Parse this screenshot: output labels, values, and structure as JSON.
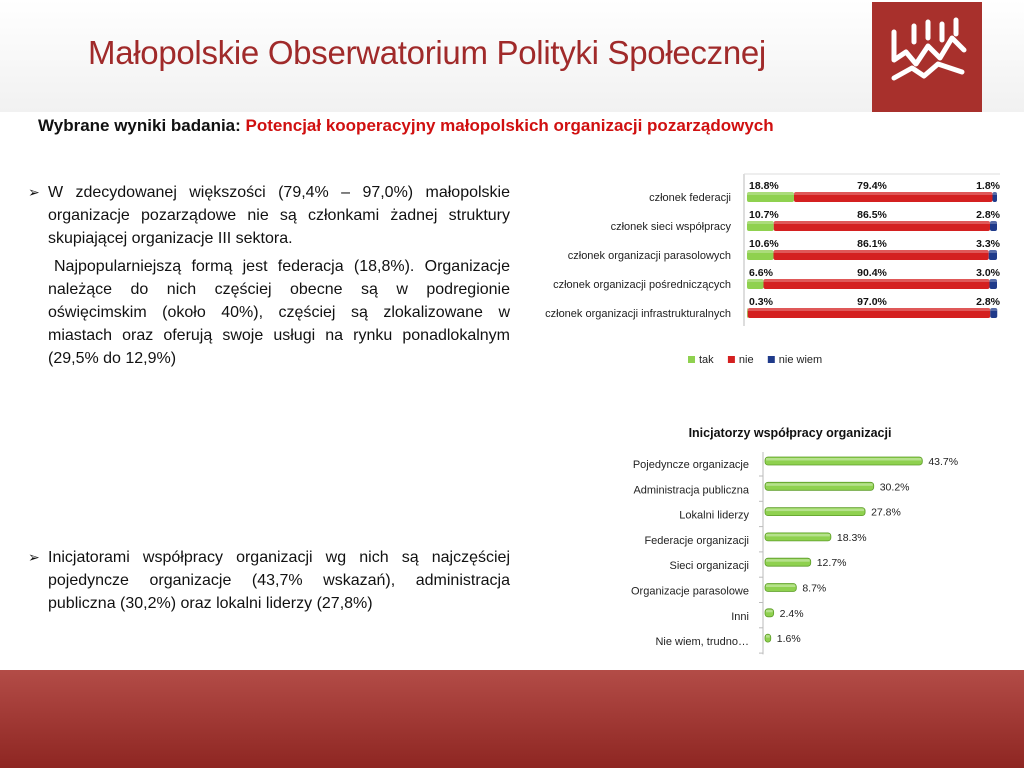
{
  "header": {
    "title": "Małopolskie Obserwatorium Polityki Społecznej"
  },
  "subtitle": {
    "label": "Wybrane wyniki badania:",
    "value": "Potencjał kooperacyjny małopolskich organizacji pozarządowych"
  },
  "text": {
    "para1": "W zdecydowanej większości (79,4% – 97,0%) małopolskie organizacje pozarządowe nie są członkami żadnej struktury skupiającej organizacje III sektora.",
    "para2": "Najpopularniejszą formą jest federacja (18,8%). Organizacje należące do nich częściej obecne są w podregionie oświęcimskim (około 40%), częściej są zlokalizowane w miastach oraz oferują swoje usługi na rynku ponadlokalnym (29,5% do 12,9%)",
    "para3": "Inicjatorami współpracy organizacji wg nich są najczęściej pojedyncze organizacje (43,7% wskazań), administracja publiczna (30,2%) oraz lokalni liderzy (27,8%)",
    "bullet_glyph": "➢"
  },
  "chart_data": [
    {
      "type": "bar",
      "orientation": "horizontal",
      "stacked": true,
      "title": "",
      "categories": [
        "członek federacji",
        "członek sieci współpracy",
        "członek organizacji parasolowych",
        "członek organizacji pośredniczących",
        "członek organizacji infrastrukturalnych"
      ],
      "series": [
        {
          "name": "tak",
          "values": [
            18.8,
            10.7,
            10.6,
            6.6,
            0.3
          ],
          "labels": [
            "18.8%",
            "10.7%",
            "10.6%",
            "6.6%",
            "0.3%"
          ],
          "color": "#8fd14f"
        },
        {
          "name": "nie",
          "values": [
            79.4,
            86.5,
            86.1,
            90.4,
            97.0
          ],
          "labels": [
            "79.4%",
            "86.5%",
            "86.1%",
            "90.4%",
            "97.0%"
          ],
          "color": "#d42020"
        },
        {
          "name": "nie wiem",
          "values": [
            1.8,
            2.8,
            3.3,
            3.0,
            2.8
          ],
          "labels": [
            "1.8%",
            "2.8%",
            "3.3%",
            "3.0%",
            "2.8%"
          ],
          "color": "#1f3a8a"
        }
      ],
      "xlim": [
        0,
        100
      ],
      "legend": "bottom"
    },
    {
      "type": "bar",
      "orientation": "horizontal",
      "title": "Inicjatorzy współpracy organizacji",
      "categories": [
        "Pojedyncze organizacje",
        "Administracja publiczna",
        "Lokalni liderzy",
        "Federacje organizacji",
        "Sieci organizacji",
        "Organizacje parasolowe",
        "Inni",
        "Nie wiem, trudno…"
      ],
      "values": [
        43.7,
        30.2,
        27.8,
        18.3,
        12.7,
        8.7,
        2.4,
        1.6
      ],
      "labels": [
        "43.7%",
        "30.2%",
        "27.8%",
        "18.3%",
        "12.7%",
        "8.7%",
        "2.4%",
        "1.6%"
      ],
      "color": "#8fd14f",
      "xlim": [
        0,
        50
      ]
    }
  ]
}
